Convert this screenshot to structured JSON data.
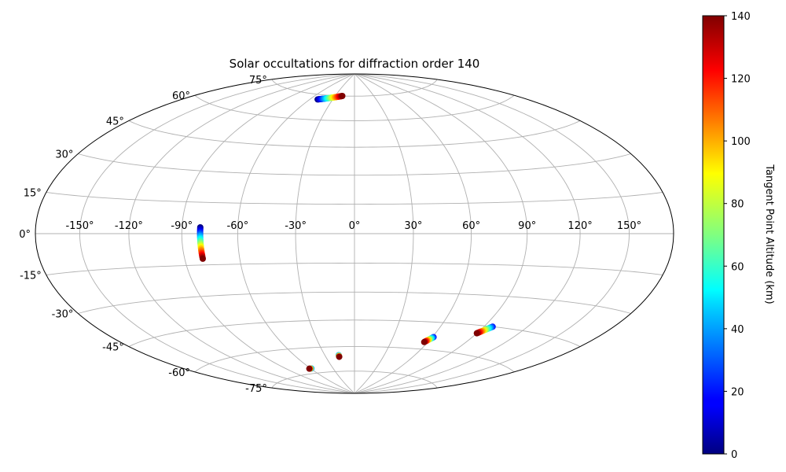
{
  "chart_data": {
    "type": "scatter",
    "projection": "hammer",
    "title": "Solar occultations for diffraction order 140",
    "lon_ticks": [
      "-150°",
      "-120°",
      "-90°",
      "-60°",
      "-30°",
      "0°",
      "30°",
      "60°",
      "90°",
      "120°",
      "150°"
    ],
    "lon_values": [
      -150,
      -120,
      -90,
      -60,
      -30,
      0,
      30,
      60,
      90,
      120,
      150
    ],
    "lat_ticks": [
      "-75°",
      "-60°",
      "-45°",
      "-30°",
      "-15°",
      "0°",
      "15°",
      "30°",
      "45°",
      "60°",
      "75°"
    ],
    "lat_values": [
      -75,
      -60,
      -45,
      -30,
      -15,
      0,
      15,
      30,
      45,
      60,
      75
    ],
    "grid": true,
    "colorbar": {
      "label": "Tangent Point Altitude (km)",
      "min": 0,
      "max": 140,
      "ticks": [
        "0",
        "20",
        "40",
        "60",
        "80",
        "100",
        "120",
        "140"
      ],
      "tick_values": [
        0,
        20,
        40,
        60,
        80,
        100,
        120,
        140
      ],
      "colormap": "jet"
    },
    "tracks": [
      {
        "lon_start": -50,
        "lat_start": 72,
        "lon_end": -19,
        "lat_end": 75,
        "alt_start": 0,
        "alt_end": 140,
        "points": 40
      },
      {
        "lon_start": -80,
        "lat_start": 3,
        "lon_end": -80,
        "lat_end": -12,
        "alt_start": 0,
        "alt_end": 140,
        "points": 30
      },
      {
        "lon_start": 61,
        "lat_start": -53,
        "lon_end": 57,
        "lat_end": -56,
        "alt_start": 20,
        "alt_end": 140,
        "points": 14
      },
      {
        "lon_start": 96,
        "lat_start": -45,
        "lon_end": 90,
        "lat_end": -49,
        "alt_start": 20,
        "alt_end": 140,
        "points": 18
      },
      {
        "lon_start": -16,
        "lat_start": -65,
        "lon_end": -16,
        "lat_end": -66,
        "alt_start": 40,
        "alt_end": 140,
        "points": 4
      },
      {
        "lon_start": -59,
        "lat_start": -72,
        "lon_end": -62,
        "lat_end": -72,
        "alt_start": 40,
        "alt_end": 140,
        "points": 4
      }
    ]
  }
}
